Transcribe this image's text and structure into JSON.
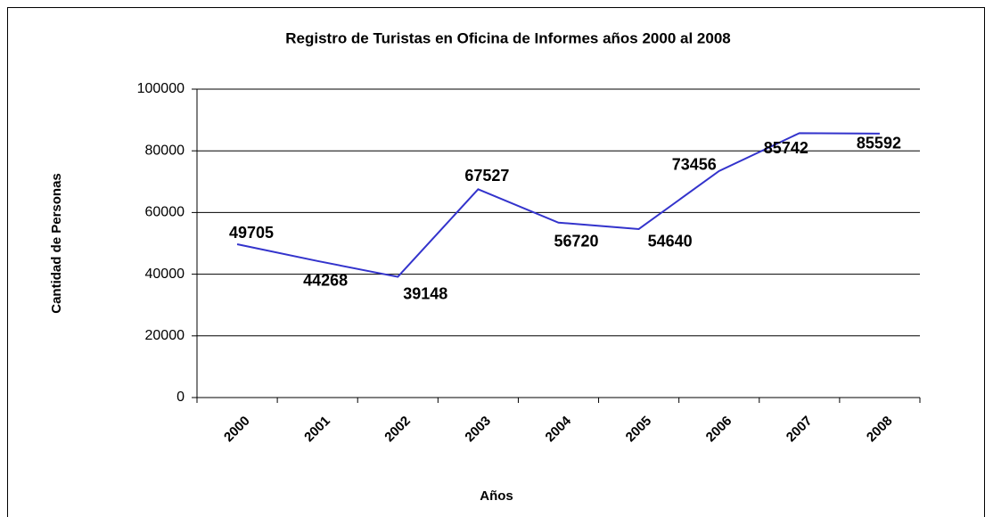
{
  "chart_data": {
    "type": "line",
    "title": "Registro de Turistas en Oficina de Informes años 2000 al 2008",
    "x_label": "Años",
    "y_label": "Cantidad de Personas",
    "categories": [
      "2000",
      "2001",
      "2002",
      "2003",
      "2004",
      "2005",
      "2006",
      "2007",
      "2008"
    ],
    "series": [
      {
        "name": "Turistas",
        "color": "#3333cc",
        "values": [
          49705,
          44268,
          39148,
          67527,
          56720,
          54640,
          73456,
          85742,
          85592
        ]
      }
    ],
    "ylim": [
      0,
      100000
    ],
    "yticks": [
      0,
      20000,
      40000,
      60000,
      80000,
      100000
    ],
    "grid": true
  }
}
